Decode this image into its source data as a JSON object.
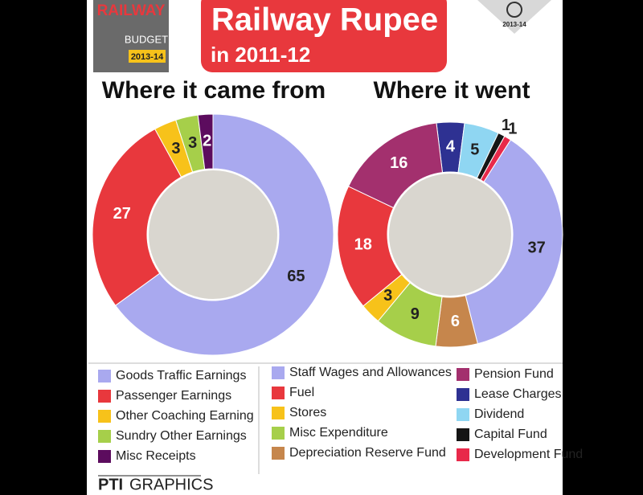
{
  "header": {
    "logo_word": "RAILWAY",
    "logo_budget": "BUDGET",
    "logo_year": "2013-14",
    "title": "Railway Rupee",
    "subtitle": "in 2011-12",
    "emblem_year": "2013-14"
  },
  "chart_data": [
    {
      "type": "pie",
      "title": "Where it came from",
      "categories": [
        "Goods Traffic Earnings",
        "Passenger Earnings",
        "Other Coaching Earning",
        "Sundry Other Earnings",
        "Misc Receipts"
      ],
      "values": [
        65,
        27,
        3,
        3,
        2
      ],
      "colors": [
        "#a9a9ef",
        "#e8383d",
        "#f7c21a",
        "#a6cf4a",
        "#5c0c5e"
      ]
    },
    {
      "type": "pie",
      "title": "Where it went",
      "categories": [
        "Lease Charges",
        "Dividend",
        "Capital Fund",
        "Development Fund",
        "Staff  Wages and Allowances",
        "Depreciation Reserve Fund",
        "Misc Expenditure",
        "Stores",
        "Fuel",
        "Pension Fund"
      ],
      "values": [
        4,
        5,
        1,
        1,
        37,
        6,
        9,
        3,
        18,
        16
      ],
      "colors": [
        "#2e3192",
        "#8fd6f2",
        "#151515",
        "#e8294a",
        "#a9a9ef",
        "#c6864c",
        "#a6cf4a",
        "#f7c21a",
        "#e8383d",
        "#a3306e"
      ]
    }
  ],
  "footer": {
    "credit_a": "PTI",
    "credit_b": "GRAPHICS"
  }
}
